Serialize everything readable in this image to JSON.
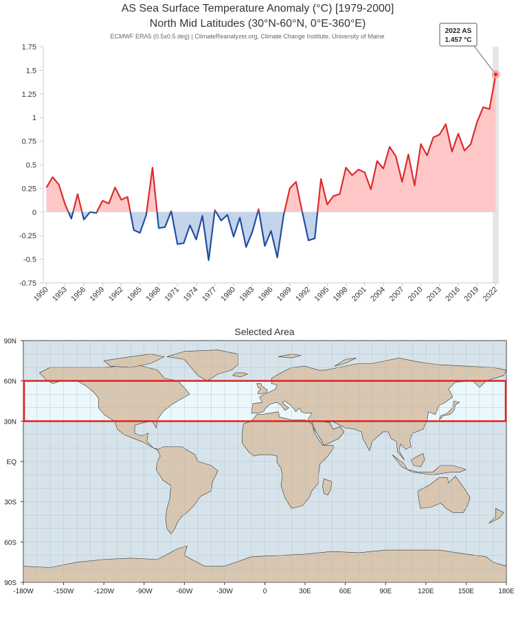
{
  "chart_data": [
    {
      "type": "area",
      "title": "AS Sea Surface Temperature Anomaly (°C) [1979-2000]",
      "subtitle": "North Mid Latitudes (30°N-60°N, 0°E-360°E)",
      "source": "ECMWF ERA5 (0.5x0.5 deg) | ClimateReanalyzer.org, Climate Change Institute, University of Maine",
      "xlabel": "",
      "ylabel": "",
      "x": [
        1950,
        1951,
        1952,
        1953,
        1954,
        1955,
        1956,
        1957,
        1958,
        1959,
        1960,
        1961,
        1962,
        1963,
        1964,
        1965,
        1966,
        1967,
        1968,
        1969,
        1970,
        1971,
        1972,
        1973,
        1974,
        1975,
        1976,
        1977,
        1978,
        1979,
        1980,
        1981,
        1982,
        1983,
        1984,
        1985,
        1986,
        1987,
        1988,
        1989,
        1990,
        1991,
        1992,
        1993,
        1994,
        1995,
        1996,
        1997,
        1998,
        1999,
        2000,
        2001,
        2002,
        2003,
        2004,
        2005,
        2006,
        2007,
        2008,
        2009,
        2010,
        2011,
        2012,
        2013,
        2014,
        2015,
        2016,
        2017,
        2018,
        2019,
        2020,
        2021,
        2022
      ],
      "series": [
        {
          "values": [
            0.26,
            0.37,
            0.29,
            0.08,
            -0.07,
            0.19,
            -0.08,
            0.0,
            -0.01,
            0.12,
            0.09,
            0.26,
            0.13,
            0.16,
            -0.19,
            -0.22,
            -0.03,
            0.47,
            -0.17,
            -0.16,
            0.01,
            -0.34,
            -0.33,
            -0.14,
            -0.29,
            -0.04,
            -0.51,
            0.02,
            -0.09,
            -0.03,
            -0.26,
            -0.06,
            -0.37,
            -0.21,
            0.03,
            -0.36,
            -0.2,
            -0.48,
            -0.04,
            0.25,
            0.32,
            0.0,
            -0.3,
            -0.28,
            0.35,
            0.08,
            0.17,
            0.19,
            0.47,
            0.39,
            0.45,
            0.42,
            0.24,
            0.54,
            0.46,
            0.69,
            0.59,
            0.32,
            0.61,
            0.28,
            0.72,
            0.6,
            0.79,
            0.82,
            0.93,
            0.64,
            0.83,
            0.65,
            0.72,
            0.95,
            1.11,
            1.09,
            1.457
          ]
        }
      ],
      "xticks": [
        "1950",
        "1953",
        "1956",
        "1959",
        "1962",
        "1965",
        "1968",
        "1971",
        "1974",
        "1977",
        "1980",
        "1983",
        "1986",
        "1989",
        "1992",
        "1995",
        "1998",
        "2001",
        "2004",
        "2007",
        "2010",
        "2013",
        "2016",
        "2019",
        "2022"
      ],
      "yticks": [
        "1.75",
        "1.5",
        "1.25",
        "1",
        "0.75",
        "0.5",
        "0.25",
        "0",
        "-0.25",
        "-0.5",
        "-0.75"
      ],
      "ylim": [
        -0.75,
        1.75
      ],
      "xlim": [
        1949.5,
        2022.5
      ],
      "colors": {
        "positive_line": "#dd2a2a",
        "positive_fill": "#ffc7c7",
        "negative_line": "#1f4ea1",
        "negative_fill": "#c3d3ea",
        "highlight": "#e6e6e6"
      },
      "grid": false,
      "tooltip": {
        "line1": "2022 AS",
        "line2": "1.457 °C"
      }
    },
    {
      "type": "map",
      "title": "Selected Area",
      "xticks": [
        "-180W",
        "-150W",
        "-120W",
        "-90W",
        "-60W",
        "-30W",
        "0",
        "30E",
        "60E",
        "90E",
        "120E",
        "150E",
        "180E"
      ],
      "yticks": [
        "90N",
        "60N",
        "30N",
        "EQ",
        "30S",
        "60S",
        "90S"
      ],
      "xlim": [
        -180,
        180
      ],
      "ylim": [
        -90,
        90
      ],
      "selected_region": {
        "lat_min": 30,
        "lat_max": 60,
        "lon_min": -180,
        "lon_max": 180
      },
      "grid": true,
      "colors": {
        "ocean": "#d6e3ea",
        "land": "#d9c6b0",
        "coast": "#333333",
        "grid": "#a9bcc6",
        "selection": "#e02020",
        "selection_fill": "#eaf7fb"
      }
    }
  ]
}
